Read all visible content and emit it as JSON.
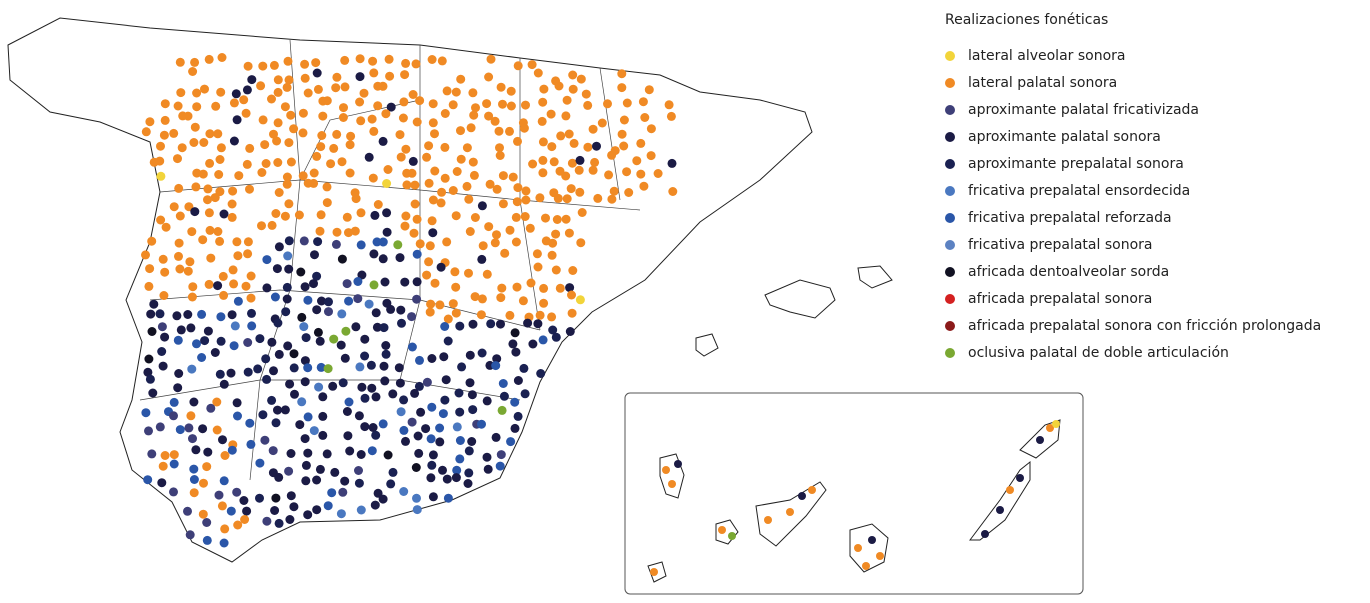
{
  "legend": {
    "title": "Realizaciones fonéticas",
    "items": [
      {
        "label": "lateral alveolar sonora",
        "color": "#f2d43a"
      },
      {
        "label": "lateral palatal sonora",
        "color": "#f08a24"
      },
      {
        "label": "aproximante palatal fricativizada",
        "color": "#3e3f78"
      },
      {
        "label": "aproximante palatal sonora",
        "color": "#1b1b45"
      },
      {
        "label": "aproximante prepalatal sonora",
        "color": "#1a2152"
      },
      {
        "label": "fricativa prepalatal ensordecida",
        "color": "#4a78c0"
      },
      {
        "label": "fricativa prepalatal reforzada",
        "color": "#2a56a8"
      },
      {
        "label": "fricativa prepalatal sonora",
        "color": "#5c82c2"
      },
      {
        "label": "africada dentoalveolar sorda",
        "color": "#111122"
      },
      {
        "label": "africada prepalatal sonora",
        "color": "#d42020"
      },
      {
        "label": "africada prepalatal sonora con fricción prolongada",
        "color": "#8b1a1a"
      },
      {
        "label": "oclusiva palatal de doble articulación",
        "color": "#7aa832"
      }
    ]
  }
}
